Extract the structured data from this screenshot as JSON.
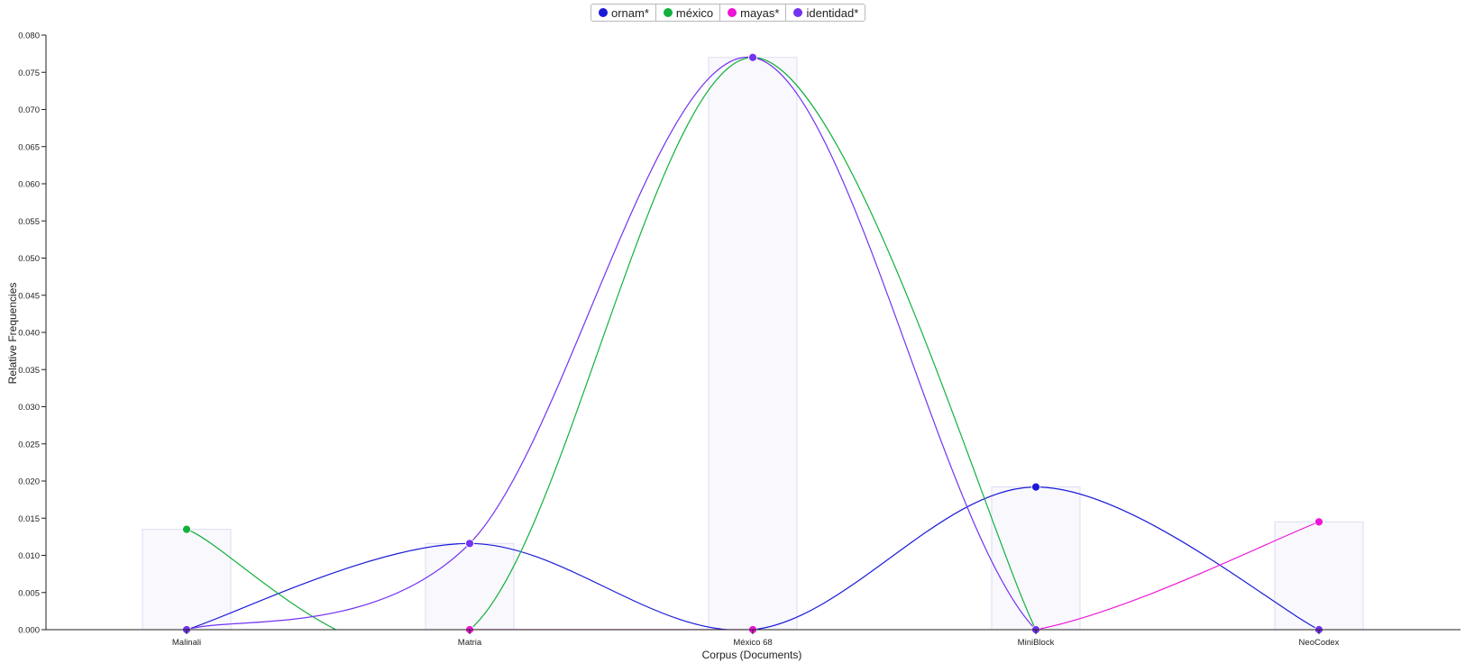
{
  "chart_data": {
    "type": "line",
    "title": "",
    "xlabel": "Corpus (Documents)",
    "ylabel": "Relative Frequencies",
    "categories": [
      "Malinali",
      "Matria",
      "México 68",
      "MiniBlock",
      "NeoCodex"
    ],
    "ylim": [
      0,
      0.08
    ],
    "yticks": [
      0,
      0.005,
      0.01,
      0.015,
      0.02,
      0.025,
      0.03,
      0.035,
      0.04,
      0.045,
      0.05,
      0.055,
      0.06,
      0.065,
      0.07,
      0.075,
      0.08
    ],
    "ytick_labels": [
      "0.000",
      "0.005",
      "0.010",
      "0.015",
      "0.020",
      "0.025",
      "0.030",
      "0.035",
      "0.040",
      "0.045",
      "0.050",
      "0.055",
      "0.060",
      "0.065",
      "0.070",
      "0.075",
      "0.080"
    ],
    "bars": [
      0.0135,
      0.0116,
      0.077,
      0.0192,
      0.0145
    ],
    "grid": false,
    "legend_position": "top-center",
    "series": [
      {
        "name": "ornam*",
        "color": "#1a1ad9",
        "values": [
          0,
          0.0116,
          0,
          0.0192,
          0
        ]
      },
      {
        "name": "méxico",
        "color": "#12b03c",
        "values": [
          0.0135,
          0,
          0.077,
          0,
          null
        ]
      },
      {
        "name": "mayas*",
        "color": "#ee14d8",
        "values": [
          null,
          0,
          0,
          0,
          0.0145
        ]
      },
      {
        "name": "identidad*",
        "color": "#7433f0",
        "values": [
          0,
          0.0116,
          0.077,
          0,
          0
        ]
      }
    ]
  }
}
